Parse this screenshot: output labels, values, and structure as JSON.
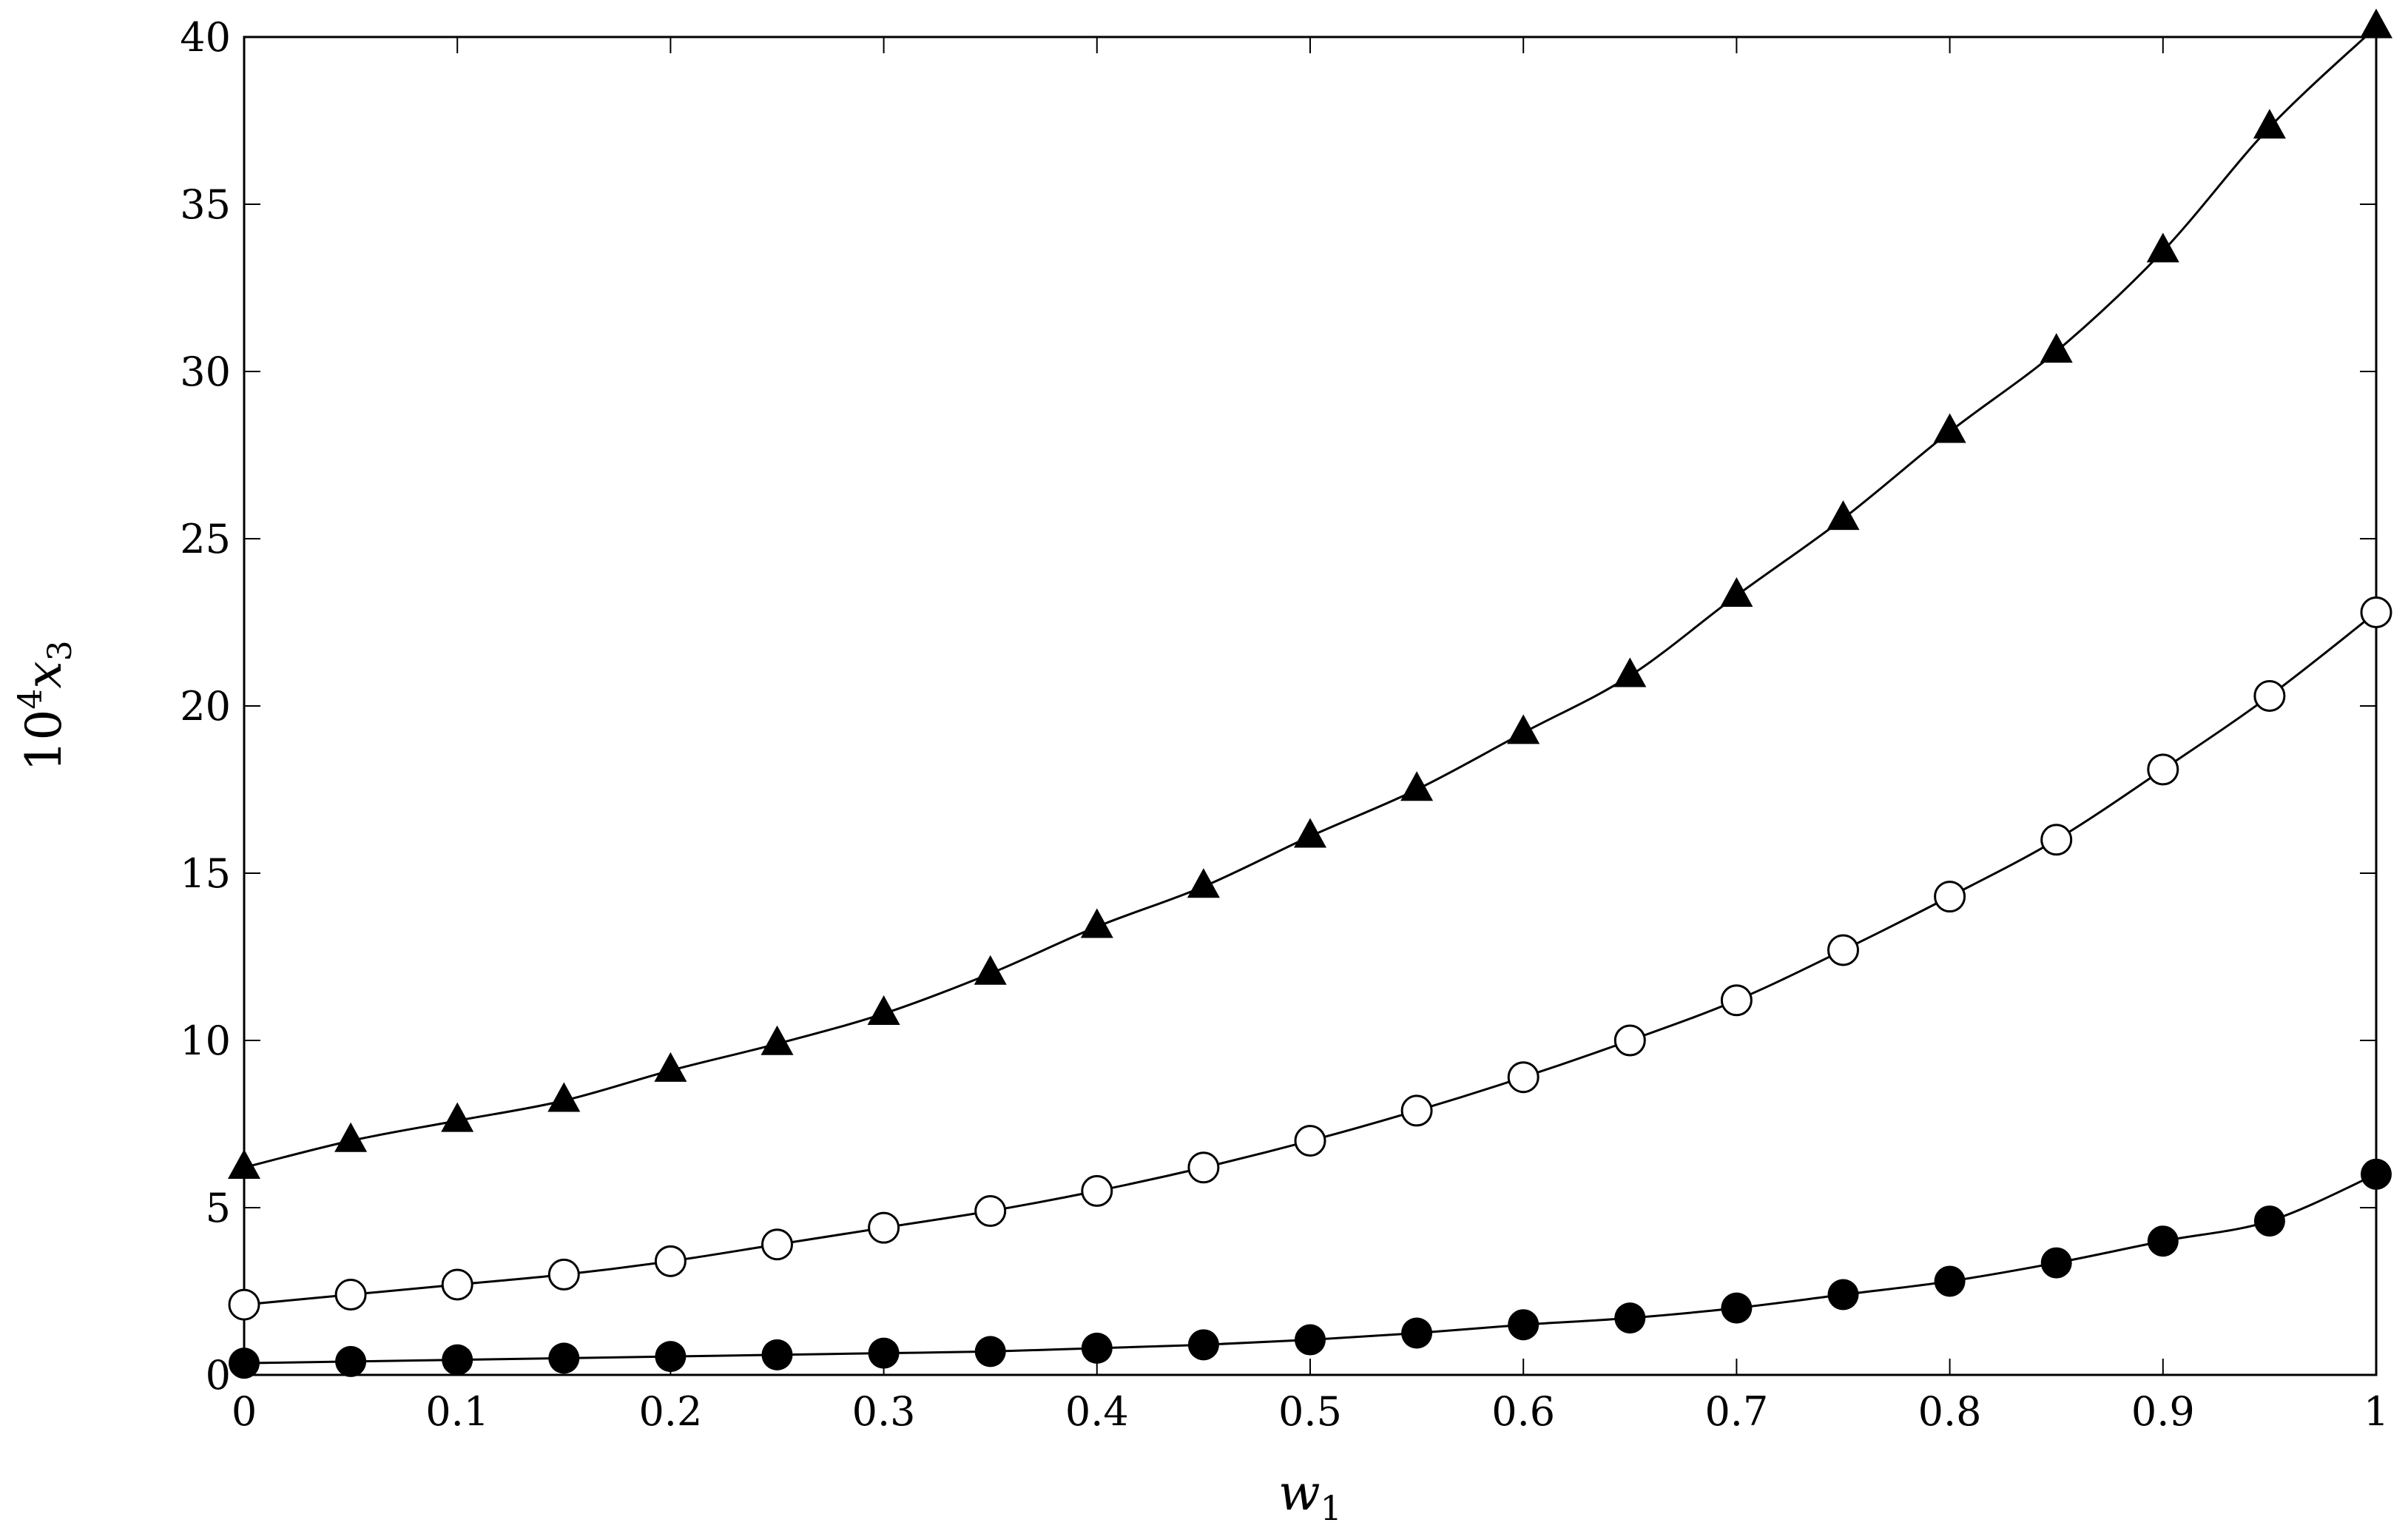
{
  "chart_data": {
    "type": "line",
    "xlabel": "w",
    "xlabel_sub": "1",
    "ylabel_base": "10",
    "ylabel_exp": "4",
    "ylabel_var": "x",
    "ylabel_sub": "3",
    "xlim": [
      0,
      1
    ],
    "ylim": [
      0,
      40
    ],
    "x_ticks": [
      "0",
      "0.1",
      "0.2",
      "0.3",
      "0.4",
      "0.5",
      "0.6",
      "0.7",
      "0.8",
      "0.9",
      "1"
    ],
    "y_ticks": [
      "0",
      "5",
      "10",
      "15",
      "20",
      "25",
      "30",
      "35",
      "40"
    ],
    "grid": false,
    "x": [
      0,
      0.05,
      0.1,
      0.15,
      0.2,
      0.25,
      0.3,
      0.35,
      0.4,
      0.45,
      0.5,
      0.55,
      0.6,
      0.65,
      0.7,
      0.75,
      0.8,
      0.85,
      0.9,
      0.95,
      1
    ],
    "series": [
      {
        "marker": "triangle-filled",
        "values": [
          6.2,
          7.0,
          7.6,
          8.2,
          9.1,
          9.9,
          10.8,
          12.0,
          13.4,
          14.6,
          16.1,
          17.5,
          19.2,
          20.9,
          23.3,
          25.6,
          28.2,
          30.6,
          33.6,
          37.3,
          40.3
        ]
      },
      {
        "marker": "circle-open",
        "values": [
          2.1,
          2.4,
          2.7,
          3.0,
          3.4,
          3.9,
          4.4,
          4.9,
          5.5,
          6.2,
          7.0,
          7.9,
          8.9,
          10.0,
          11.2,
          12.7,
          14.3,
          16.0,
          18.1,
          20.3,
          22.8
        ]
      },
      {
        "marker": "circle-filled",
        "values": [
          0.35,
          0.4,
          0.45,
          0.5,
          0.55,
          0.6,
          0.65,
          0.7,
          0.8,
          0.9,
          1.05,
          1.25,
          1.5,
          1.7,
          2.0,
          2.4,
          2.8,
          3.35,
          4.0,
          4.6,
          6.0
        ]
      }
    ]
  }
}
